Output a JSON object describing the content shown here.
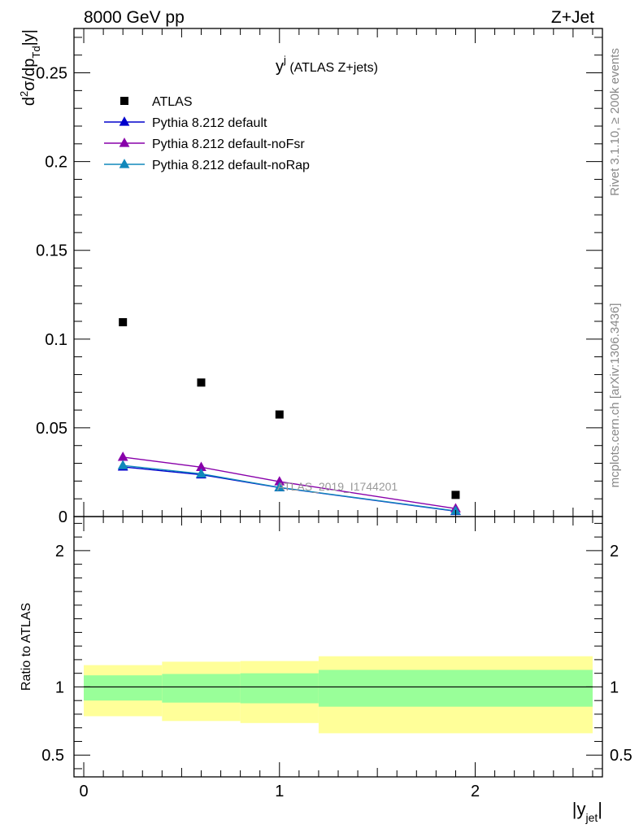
{
  "header": {
    "left": "8000 GeV pp",
    "right": "Z+Jet"
  },
  "side_text": {
    "rivet": "Rivet 3.1.10, ≥ 200k events",
    "mcplots": "mcplots.cern.ch [arXiv:1306.3436]"
  },
  "watermark": "ATLAS_2019_I1744201",
  "chart_data": [
    {
      "type": "scatter",
      "panel": "main",
      "title_main": "y",
      "title_sup": "j",
      "title_rest": " (ATLAS Z+jets)",
      "ylabel": "d²σ/dp_Td|y|",
      "ylim": [
        0,
        0.275
      ],
      "yticks": [
        0,
        0.05,
        0.1,
        0.15,
        0.2,
        0.25
      ],
      "ytick_labels": [
        "0",
        "0.05",
        "0.1",
        "0.15",
        "0.2",
        "0.25"
      ],
      "xlim": [
        -0.05,
        2.65
      ],
      "legend_position": "top-left",
      "series": [
        {
          "name": "ATLAS",
          "marker": "square",
          "color": "#000000",
          "x": [
            0.2,
            0.6,
            1.0,
            1.9
          ],
          "y": [
            0.1095,
            0.0755,
            0.0575,
            0.0122
          ]
        },
        {
          "name": "Pythia 8.212 default",
          "marker": "triangle",
          "color": "#0000cc",
          "x": [
            0.2,
            0.6,
            1.0,
            1.9
          ],
          "y": [
            0.028,
            0.0236,
            0.0163,
            0.003
          ]
        },
        {
          "name": "Pythia 8.212 default-noFsr",
          "marker": "triangle",
          "color": "#8800aa",
          "x": [
            0.2,
            0.6,
            1.0,
            1.9
          ],
          "y": [
            0.0335,
            0.0278,
            0.0197,
            0.0045
          ]
        },
        {
          "name": "Pythia 8.212 default-noRap",
          "marker": "triangle",
          "color": "#1188bb",
          "x": [
            0.2,
            0.6,
            1.0,
            1.9
          ],
          "y": [
            0.0288,
            0.0241,
            0.0164,
            0.0032
          ]
        }
      ]
    },
    {
      "type": "area",
      "panel": "ratio",
      "ylabel": "Ratio to ATLAS",
      "xlabel": "|y",
      "xlabel_sub": "jet",
      "ylim": [
        0.34,
        2.25
      ],
      "yticks": [
        0.5,
        1,
        2
      ],
      "ytick_labels": [
        "0.5",
        "1",
        "2"
      ],
      "xlim": [
        -0.05,
        2.65
      ],
      "xticks": [
        0,
        1,
        2
      ],
      "xtick_labels": [
        "0",
        "1",
        "2"
      ],
      "reference_line": 1,
      "bins": [
        {
          "x0": 0.0,
          "x1": 0.4,
          "stat_lo": 0.9,
          "stat_hi": 1.085,
          "tot_lo": 0.785,
          "tot_hi": 1.16
        },
        {
          "x0": 0.4,
          "x1": 0.8,
          "stat_lo": 0.885,
          "stat_hi": 1.095,
          "tot_lo": 0.75,
          "tot_hi": 1.185
        },
        {
          "x0": 0.8,
          "x1": 1.2,
          "stat_lo": 0.88,
          "stat_hi": 1.1,
          "tot_lo": 0.735,
          "tot_hi": 1.19
        },
        {
          "x0": 1.2,
          "x1": 2.6,
          "stat_lo": 0.855,
          "stat_hi": 1.125,
          "tot_lo": 0.66,
          "tot_hi": 1.225
        }
      ],
      "colors": {
        "stat": "#99ff99",
        "total": "#ffff99"
      }
    }
  ]
}
